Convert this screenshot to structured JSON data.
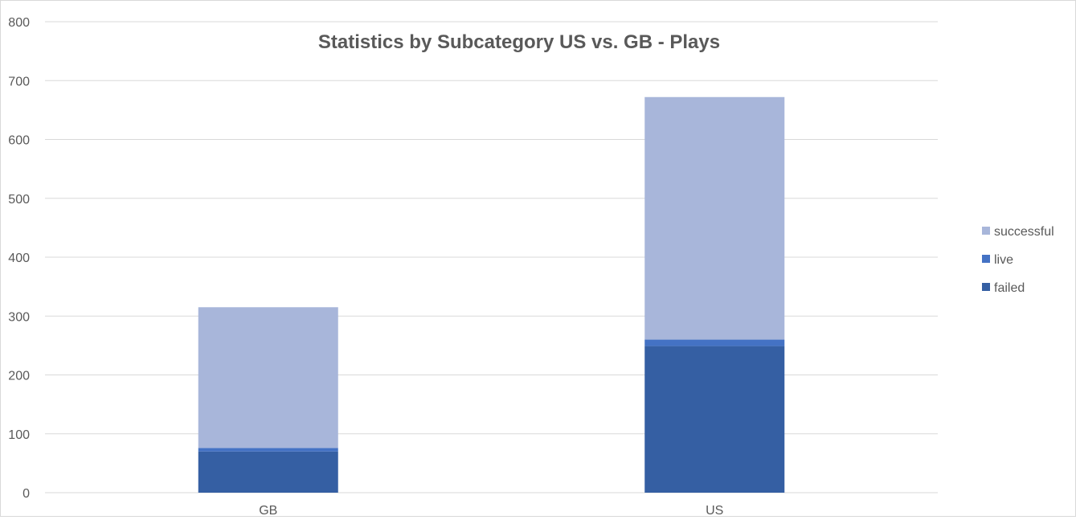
{
  "chart_data": {
    "type": "bar",
    "stacked": true,
    "title": "Statistics by Subcategory US vs. GB - Plays",
    "xlabel": "",
    "ylabel": "",
    "categories": [
      "GB",
      "US"
    ],
    "series": [
      {
        "name": "failed",
        "values": [
          70,
          249
        ],
        "color": "#355fa3"
      },
      {
        "name": "live",
        "values": [
          6,
          11
        ],
        "color": "#4472c4"
      },
      {
        "name": "successful",
        "values": [
          239,
          412
        ],
        "color": "#a8b6da"
      }
    ],
    "ylim": [
      0,
      800
    ],
    "yticks": [
      "0",
      "100",
      "200",
      "300",
      "400",
      "500",
      "600",
      "700",
      "800"
    ],
    "grid": true,
    "legend_position": "right"
  }
}
